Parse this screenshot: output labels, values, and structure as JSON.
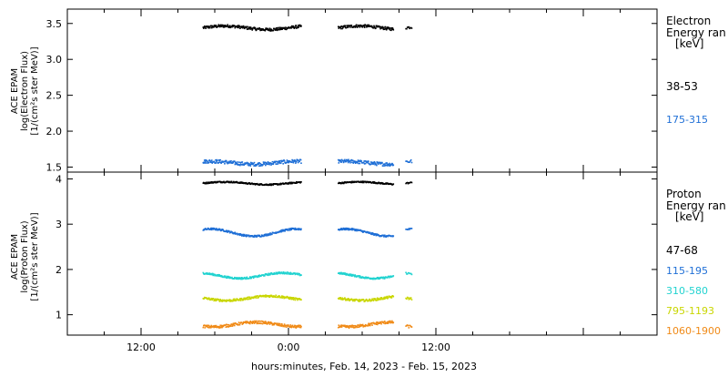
{
  "chart_data": [
    {
      "type": "scatter",
      "ylabel_lines": [
        "ACE EPAM",
        "log(Electron Flux)",
        "[1/(cm²s ster MeV)]"
      ],
      "legend_title": [
        "Electron",
        "Energy ran",
        "[keV]"
      ],
      "ylim": [
        1.43,
        3.7
      ],
      "yticks": [
        "1.5",
        "2.0",
        "2.5",
        "3.0",
        "3.5"
      ],
      "ytick_values": [
        1.5,
        2.0,
        2.5,
        3.0,
        3.5
      ],
      "series": [
        {
          "name": "38-53",
          "color": "#000000",
          "base": 3.45,
          "amp": 0.025,
          "noise": 0.04
        },
        {
          "name": "175-315",
          "color": "#1f6fd6",
          "base": 1.57,
          "amp": 0.02,
          "noise": 0.05
        }
      ]
    },
    {
      "type": "scatter",
      "ylabel_lines": [
        "ACE EPAM",
        "log(Proton Flux)",
        "[1/(cm²s ster MeV)]"
      ],
      "legend_title": [
        "Proton",
        "Energy ran",
        "[keV]"
      ],
      "ylim": [
        0.55,
        4.15
      ],
      "yticks": [
        "1",
        "2",
        "3",
        "4"
      ],
      "ytick_values": [
        1,
        2,
        3,
        4
      ],
      "series": [
        {
          "name": "47-68",
          "color": "#000000",
          "base": 3.92,
          "amp": 0.03,
          "noise": 0.03
        },
        {
          "name": "115-195",
          "color": "#1f6fd6",
          "base": 2.83,
          "amp": 0.08,
          "noise": 0.04
        },
        {
          "name": "310-580",
          "color": "#22d3d0",
          "base": 1.88,
          "amp": 0.06,
          "noise": 0.04
        },
        {
          "name": "795-1193",
          "color": "#c9d600",
          "base": 1.38,
          "amp": 0.05,
          "noise": 0.05
        },
        {
          "name": "1060-1900",
          "color": "#f08a17",
          "base": 0.8,
          "amp": 0.05,
          "noise": 0.06
        }
      ]
    }
  ],
  "x_axis": {
    "label": "hours:minutes, Feb. 14, 2023 - Feb. 15, 2023",
    "range_hours": [
      6,
      54
    ],
    "ticks": [
      {
        "label": "12:00",
        "hour": 12
      },
      {
        "label": "0:00",
        "hour": 24
      },
      {
        "label": "12:00",
        "hour": 36
      }
    ],
    "data_segments_hours": [
      [
        17,
        25
      ],
      [
        28,
        32.5
      ],
      [
        33.5,
        34
      ]
    ]
  }
}
